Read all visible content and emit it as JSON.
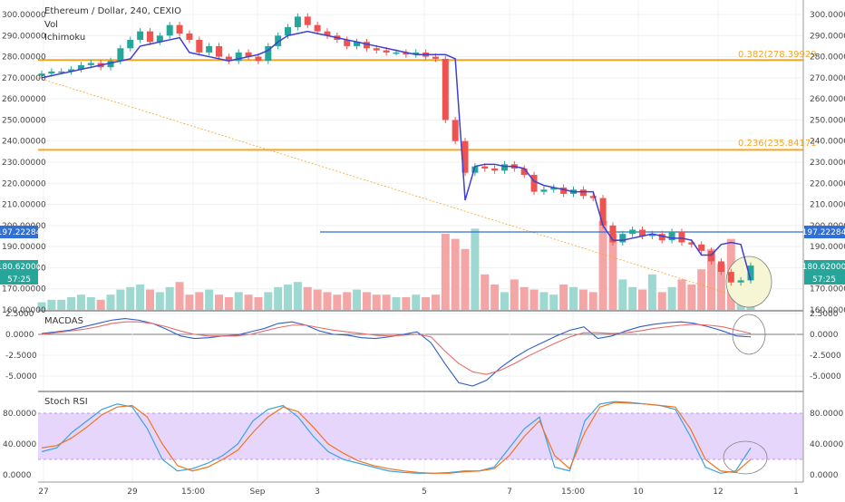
{
  "header": {
    "symbol": "Ethereum / Dollar, 240, CEXIO",
    "indicator_vol": "Vol",
    "indicator_ichimoku": "Ichimoku"
  },
  "panes": {
    "macd_label": "MACDAS",
    "stoch_label": "Stoch RSI"
  },
  "colors": {
    "bull": "#26a69a",
    "bear": "#ef5350",
    "vol_bull": "#9ed9d1",
    "vol_bear": "#f4a6a6",
    "ichimoku": "#3f3fd1",
    "fib": "#f5a623",
    "hline": "#2f6fd6",
    "macd": "#2f5fc9",
    "signal": "#e86b6b",
    "stoch_k": "#3aa3e0",
    "stoch_d": "#f2731f",
    "stoch_band": "#e7d6fb",
    "highlight": "#f6f6d5"
  },
  "fib_labels": {
    "f382": "0.382(278.39929",
    "f236": "0.236(235.84171"
  },
  "price_tags": {
    "hline": "197.22284",
    "last": "180.62000",
    "countdown": "57:25"
  },
  "chart_data": [
    {
      "type": "candlestick",
      "title": "Ethereum / Dollar, 240, CEXIO",
      "ylim": [
        160,
        302
      ],
      "yticks": [
        "300.00000",
        "290.00000",
        "280.00000",
        "270.00000",
        "260.00000",
        "250.00000",
        "240.00000",
        "230.00000",
        "220.00000",
        "210.00000",
        "200.00000",
        "190.00000",
        "180.00000",
        "170.00000",
        "160.00000"
      ],
      "xticks": [
        "27",
        "29",
        "15:00",
        "Sep",
        "3",
        "5",
        "7",
        "15:00",
        "10",
        "12",
        "1"
      ],
      "fib_levels": [
        278.39929,
        235.84171
      ],
      "hline": 197.22284,
      "last_price": 180.62,
      "closes": [
        272,
        273,
        273,
        274,
        276,
        277,
        275,
        278,
        284,
        288,
        292,
        287,
        290,
        295,
        291,
        288,
        282,
        285,
        280,
        278,
        282,
        280,
        278,
        285,
        290,
        294,
        299,
        295,
        292,
        290,
        288,
        285,
        287,
        284,
        283,
        282,
        282,
        281,
        282,
        280,
        279,
        250,
        240,
        225,
        228,
        227,
        226,
        229,
        227,
        224,
        216,
        217,
        218,
        215,
        217,
        214,
        213,
        200,
        192,
        196,
        198,
        195,
        196,
        193,
        197,
        192,
        191,
        188,
        183,
        178,
        173,
        174,
        181
      ],
      "volume": [
        3,
        4,
        4,
        5,
        6,
        5,
        4,
        6,
        8,
        9,
        10,
        8,
        7,
        9,
        11,
        6,
        7,
        8,
        6,
        5,
        7,
        6,
        5,
        7,
        9,
        10,
        11,
        9,
        8,
        7,
        6,
        7,
        8,
        7,
        6,
        6,
        5,
        5,
        6,
        5,
        6,
        30,
        28,
        24,
        32,
        14,
        10,
        7,
        12,
        9,
        8,
        7,
        6,
        10,
        9,
        8,
        7,
        35,
        30,
        12,
        9,
        8,
        14,
        7,
        9,
        12,
        10,
        16,
        24,
        18,
        28,
        12,
        8
      ],
      "ichimoku": [
        270,
        271,
        272,
        273,
        274,
        275,
        276,
        277,
        278,
        279,
        285,
        286,
        287,
        288,
        289,
        282,
        281,
        280,
        279,
        278,
        279,
        280,
        281,
        283,
        287,
        290,
        291,
        292,
        291,
        290,
        289,
        288,
        287,
        286,
        285,
        284,
        283,
        282,
        281,
        281,
        281,
        281,
        279,
        212,
        228,
        229,
        229,
        228,
        228,
        227,
        221,
        219,
        218,
        217,
        216,
        216,
        216,
        200,
        193,
        193,
        194,
        195,
        196,
        195,
        194,
        194,
        193,
        186,
        186,
        191,
        192,
        191,
        174
      ]
    },
    {
      "type": "line",
      "title": "MACDAS",
      "ylim": [
        -7,
        2.6
      ],
      "yticks": [
        "2.5000",
        "0.0000",
        "-2.5000",
        "-5.0000"
      ],
      "series": [
        {
          "values": [
            0.1,
            0.3,
            0.5,
            0.9,
            1.3,
            1.7,
            1.9,
            1.7,
            1.3,
            0.6,
            -0.2,
            -0.5,
            -0.4,
            -0.2,
            -0.1,
            0.3,
            0.7,
            1.3,
            1.5,
            1.1,
            0.4,
            0,
            -0.1,
            -0.4,
            -0.5,
            -0.3,
            0,
            0.3,
            -1,
            -3.5,
            -5.8,
            -6.2,
            -5.5,
            -4,
            -2.8,
            -1.8,
            -1,
            -0.2,
            0.5,
            0.9,
            -0.5,
            -0.2,
            0.4,
            0.9,
            1.2,
            1.4,
            1.5,
            1.3,
            0.9,
            0.4,
            -0.2,
            -0.3
          ]
        },
        {
          "values": [
            0,
            0.2,
            0.4,
            0.6,
            0.9,
            1.3,
            1.5,
            1.5,
            1.3,
            0.9,
            0.4,
            0,
            -0.2,
            -0.2,
            -0.2,
            0,
            0.4,
            0.8,
            1.1,
            1.1,
            0.8,
            0.5,
            0.3,
            0.1,
            -0.1,
            -0.2,
            -0.1,
            0,
            -0.3,
            -2,
            -3.5,
            -4.5,
            -4.8,
            -4.3,
            -3.5,
            -2.6,
            -1.8,
            -1,
            -0.3,
            0.2,
            0.2,
            0.1,
            0.2,
            0.4,
            0.7,
            0.9,
            1.1,
            1.2,
            1.1,
            0.9,
            0.5,
            0.1
          ]
        }
      ]
    },
    {
      "type": "line",
      "title": "Stoch RSI",
      "ylim": [
        -5,
        100
      ],
      "yticks": [
        "80.0000",
        "40.0000",
        "0.0000"
      ],
      "band": [
        20,
        80
      ],
      "series": [
        {
          "values": [
            30,
            35,
            55,
            70,
            85,
            92,
            88,
            60,
            20,
            5,
            8,
            15,
            25,
            40,
            70,
            85,
            90,
            75,
            50,
            30,
            20,
            15,
            10,
            5,
            3,
            2,
            2,
            3,
            5,
            5,
            10,
            35,
            60,
            75,
            10,
            5,
            70,
            92,
            95,
            94,
            92,
            90,
            85,
            50,
            10,
            2,
            5,
            35
          ]
        },
        {
          "values": [
            35,
            38,
            48,
            62,
            78,
            88,
            90,
            75,
            40,
            12,
            5,
            10,
            20,
            32,
            55,
            75,
            88,
            82,
            62,
            40,
            28,
            18,
            12,
            8,
            5,
            3,
            2,
            2,
            4,
            5,
            8,
            25,
            50,
            70,
            25,
            8,
            55,
            88,
            94,
            93,
            92,
            90,
            88,
            60,
            20,
            5,
            3,
            20
          ]
        }
      ]
    }
  ]
}
